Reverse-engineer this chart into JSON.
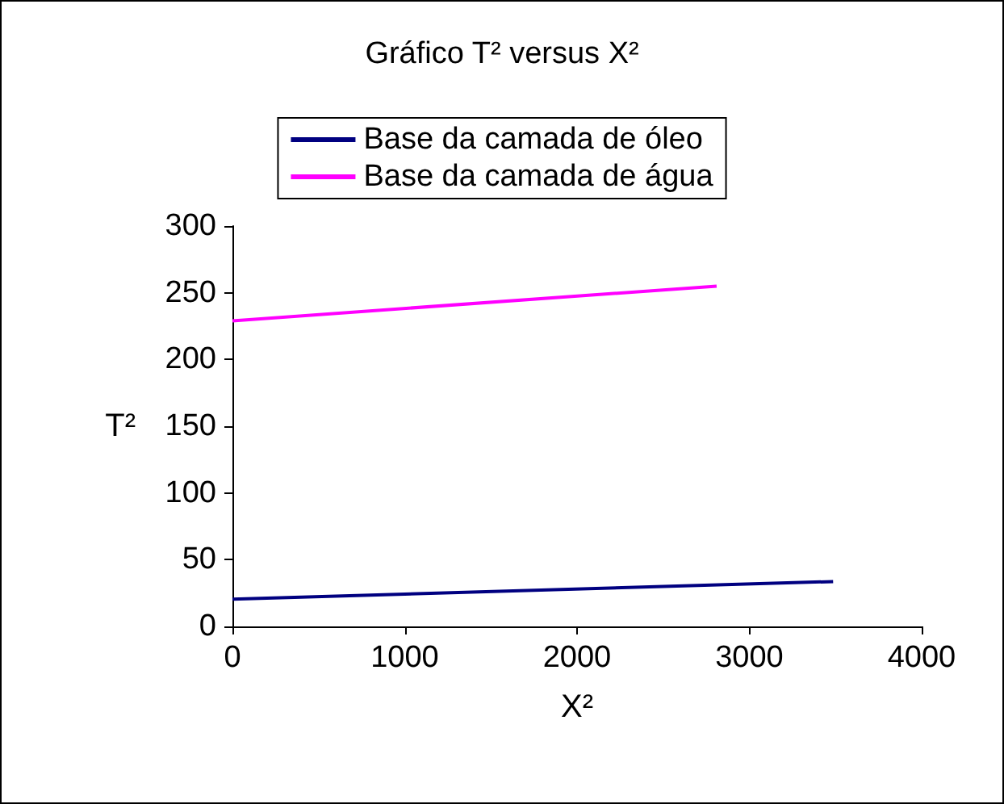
{
  "chart_data": {
    "type": "line",
    "title": "Gráfico T² versus X²",
    "xlabel": "X²",
    "ylabel": "T²",
    "series": [
      {
        "name": "Base da camada de óleo",
        "color": "#000080",
        "x": [
          0,
          3486
        ],
        "values": [
          20.4,
          33.6
        ]
      },
      {
        "name": "Base da camada de água",
        "color": "#ff00ff",
        "x": [
          0,
          2810
        ],
        "values": [
          229,
          255
        ]
      }
    ],
    "xlim": [
      0,
      4000
    ],
    "xticks": [
      0,
      1000,
      2000,
      3000,
      4000
    ],
    "ylim": [
      0,
      300
    ],
    "yticks": [
      0,
      50,
      100,
      150,
      200,
      250,
      300
    ],
    "grid": false,
    "legend": "top",
    "marker": "none",
    "line_style": "solid"
  }
}
